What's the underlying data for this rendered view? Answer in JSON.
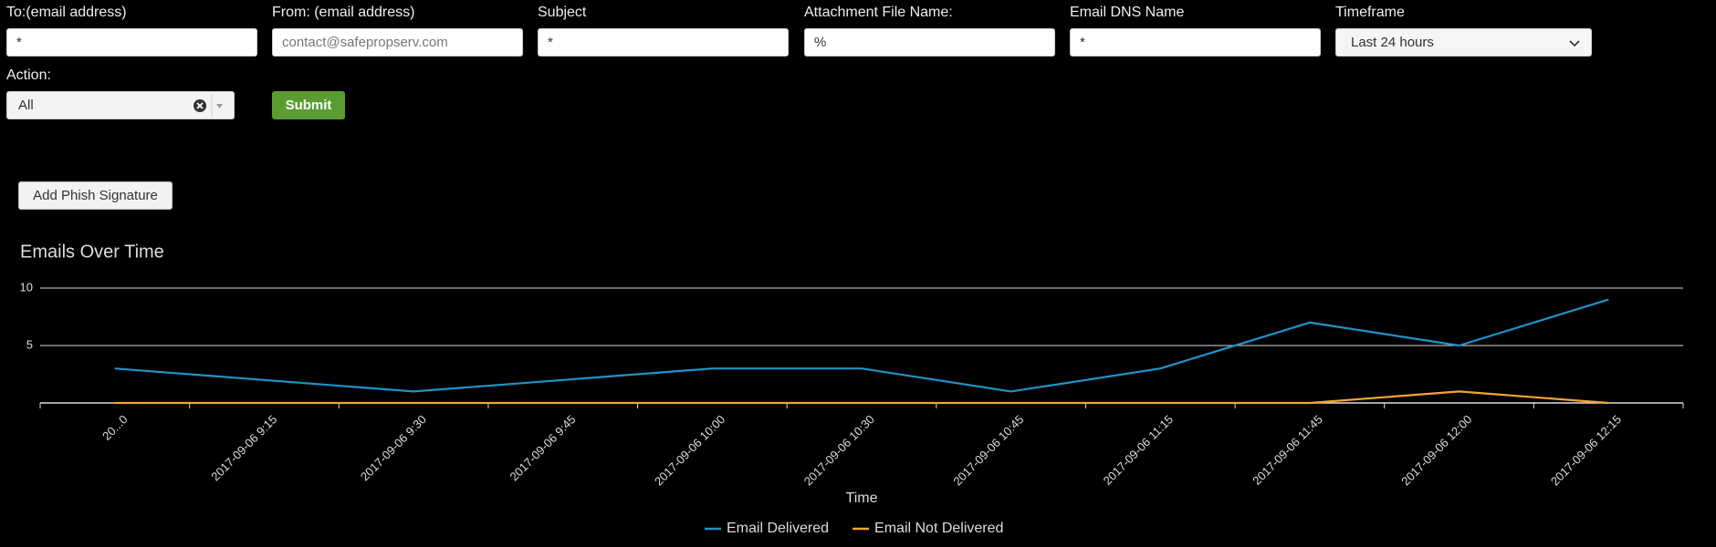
{
  "form": {
    "fields": [
      {
        "label": "To:(email address)",
        "value": "*"
      },
      {
        "label": "From: (email address)",
        "value": "contact@safepropserv.com"
      },
      {
        "label": "Subject",
        "value": "*"
      },
      {
        "label": "Attachment File Name:",
        "value": "%"
      },
      {
        "label": "Email DNS Name",
        "value": "*"
      },
      {
        "label": "Timeframe",
        "value": "Last 24 hours"
      }
    ],
    "action": {
      "label": "Action:",
      "value": "All"
    },
    "submit": "Submit",
    "add_button": "Add Phish Signature"
  },
  "chart_data": {
    "type": "line",
    "title": "Emails Over Time",
    "x_label": "Time",
    "categories": [
      "20...0",
      "2017-09-06 9:15",
      "2017-09-06 9:30",
      "2017-09-06 9:45",
      "2017-09-06 10:00",
      "2017-09-06 10:30",
      "2017-09-06 10:45",
      "2017-09-06 11:15",
      "2017-09-06 11:45",
      "2017-09-06 12:00",
      "2017-09-06 12:15"
    ],
    "series": [
      {
        "name": "Email Delivered",
        "color": "#1f93c8",
        "values": [
          3,
          2,
          1,
          2,
          3,
          3,
          1,
          3,
          7,
          5,
          9
        ]
      },
      {
        "name": "Email Not Delivered",
        "color": "#f2a631",
        "values": [
          0,
          0,
          0,
          0,
          0,
          0,
          0,
          0,
          0,
          1,
          0
        ]
      }
    ],
    "ylim": [
      0,
      10
    ],
    "yticks": [
      5,
      10
    ],
    "grid": true,
    "legend": "bottom"
  }
}
